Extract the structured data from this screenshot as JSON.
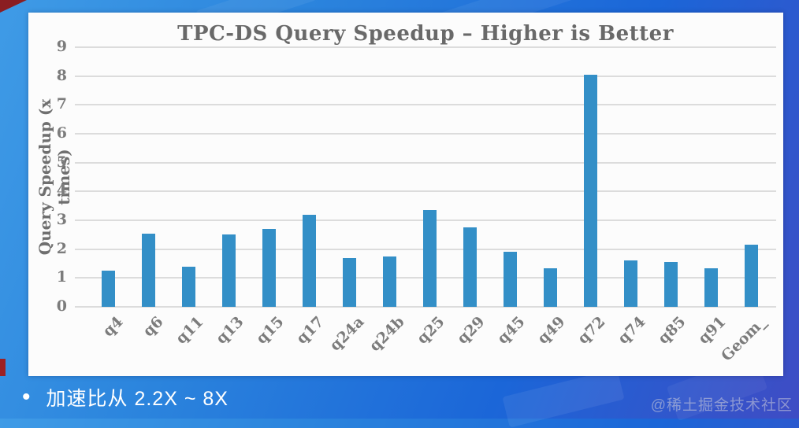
{
  "chart_data": {
    "type": "bar",
    "title": "TPC-DS Query Speedup – Higher is Better",
    "xlabel": "",
    "ylabel": "Query Speedup (x times)",
    "categories": [
      "q4",
      "q6",
      "q11",
      "q13",
      "q15",
      "q17",
      "q24a",
      "q24b",
      "q25",
      "q29",
      "q45",
      "q49",
      "q72",
      "q74",
      "q85",
      "q91",
      "Geom_"
    ],
    "values": [
      1.25,
      2.55,
      1.4,
      2.5,
      2.7,
      3.2,
      1.7,
      1.75,
      3.35,
      2.75,
      1.9,
      1.35,
      8.05,
      1.6,
      1.55,
      1.35,
      2.15
    ],
    "ylim": [
      0,
      9
    ],
    "yticks": [
      0,
      1,
      2,
      3,
      4,
      5,
      6,
      7,
      8,
      9
    ],
    "grid": true,
    "legend": null,
    "bar_color": "#338fc7"
  },
  "footer": {
    "bullet": "•",
    "text": "加速比从 2.2X ~ 8X",
    "watermark": "@稀土掘金技术社区"
  },
  "colors": {
    "bar": "#338fc7",
    "gridline": "#dcdcdc",
    "panel_background": "#fcfcfc",
    "frame_gradient_start": "#3f9be6",
    "frame_gradient_end": "#3f4cc4",
    "accent_red": "#8b1e22",
    "footer_text": "#ffffff"
  }
}
